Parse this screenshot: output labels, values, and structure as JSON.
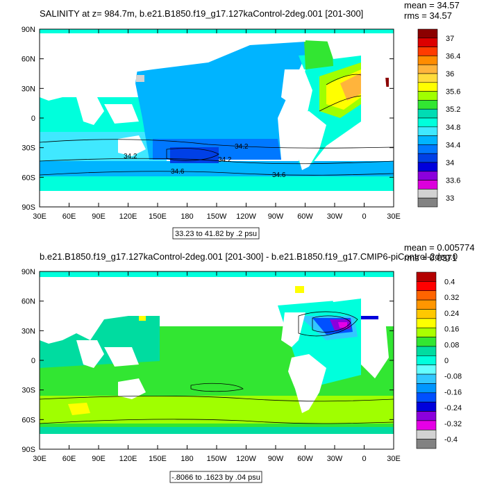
{
  "chart_data": [
    {
      "type": "heatmap",
      "title": "SALINITY at z= 984.7m, b.e21.B1850.f19_g17.127kaControl-2deg.001 [201-300]",
      "stats": {
        "mean": "mean = 34.57",
        "rms": "rms = 34.57"
      },
      "x_ticks": [
        "30E",
        "60E",
        "90E",
        "120E",
        "150E",
        "180",
        "150W",
        "120W",
        "90W",
        "60W",
        "30W",
        "0",
        "30E"
      ],
      "y_ticks": [
        "90N",
        "60N",
        "30N",
        "0",
        "30S",
        "60S",
        "90S"
      ],
      "contour_info": "33.23 to 41.82 by .2 psu",
      "colorbar_labels": [
        "37",
        "36.4",
        "36",
        "35.6",
        "35.2",
        "34.8",
        "34.4",
        "34",
        "33.6",
        "33"
      ],
      "colorbar_colors": [
        "#8b0000",
        "#dc0000",
        "#ff3c00",
        "#ff8c00",
        "#ffb43c",
        "#ffdc3c",
        "#ffff00",
        "#a0ff00",
        "#32e632",
        "#00dcb4",
        "#00ffdc",
        "#40e8ff",
        "#00b4ff",
        "#0078ff",
        "#0040e6",
        "#0000dc",
        "#8c00dc",
        "#dc00dc",
        "#d2d2d2",
        "#828282"
      ],
      "contour_labels": [
        "34.2",
        "34.2",
        "34.2",
        "34.6",
        "34.6"
      ]
    },
    {
      "type": "heatmap",
      "title": "b.e21.B1850.f19_g17.127kaControl-2deg.001 [201-300] - b.e21.B1850.f19_g17.CMIP6-piControl-2deg.0",
      "stats": {
        "mean": "mean = 0.005774",
        "rms": "rms = 0.0371"
      },
      "x_ticks": [
        "30E",
        "60E",
        "90E",
        "120E",
        "150E",
        "180",
        "150W",
        "120W",
        "90W",
        "60W",
        "30W",
        "0",
        "30E"
      ],
      "y_ticks": [
        "90N",
        "60N",
        "30N",
        "0",
        "30S",
        "60S",
        "90S"
      ],
      "contour_info": "-.8066 to .1623 by .04 psu",
      "colorbar_labels": [
        "0.4",
        "0.32",
        "0.24",
        "0.16",
        "0.08",
        "0",
        "-0.08",
        "-0.16",
        "-0.24",
        "-0.32",
        "-0.4"
      ],
      "colorbar_colors": [
        "#b40000",
        "#ff0000",
        "#ff6400",
        "#ff9600",
        "#ffc800",
        "#ffff00",
        "#aaff00",
        "#32e632",
        "#00dca0",
        "#00ffdc",
        "#64ffff",
        "#32c8ff",
        "#0096ff",
        "#0050ff",
        "#0000dc",
        "#8c00dc",
        "#e600e6",
        "#d2d2d2",
        "#828282"
      ]
    }
  ]
}
